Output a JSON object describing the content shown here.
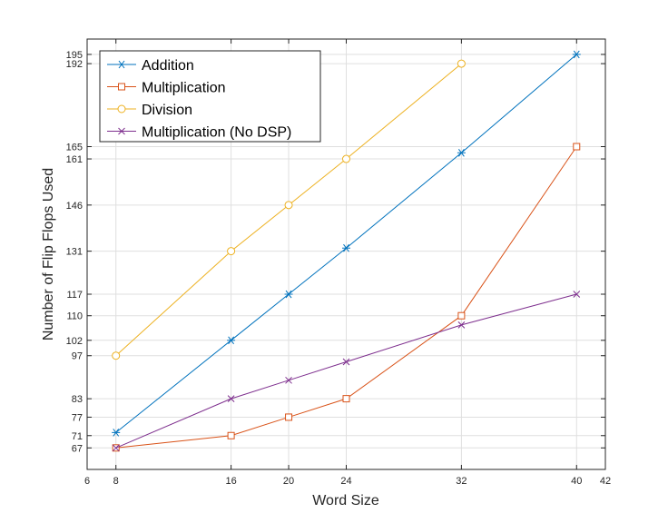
{
  "chart_data": {
    "type": "line",
    "title": "",
    "xlabel": "Word Size",
    "ylabel": "Number of Flip Flops Used",
    "xlim": [
      6,
      42
    ],
    "ylim": [
      60,
      200
    ],
    "xticks": [
      6,
      8,
      16,
      20,
      24,
      32,
      40,
      42
    ],
    "yticks": [
      67,
      71,
      77,
      83,
      97,
      102,
      110,
      117,
      131,
      146,
      161,
      165,
      192,
      195
    ],
    "grid": true,
    "legend_position": "top-left",
    "series": [
      {
        "name": "Addition",
        "color": "#0072BD",
        "marker": "asterisk",
        "x": [
          8,
          16,
          20,
          24,
          32,
          40
        ],
        "y": [
          72,
          102,
          117,
          132,
          163,
          195
        ]
      },
      {
        "name": "Multiplication",
        "color": "#D95319",
        "marker": "square",
        "x": [
          8,
          16,
          20,
          24,
          32,
          40
        ],
        "y": [
          67,
          71,
          77,
          83,
          110,
          165
        ]
      },
      {
        "name": "Division",
        "color": "#EDB120",
        "marker": "circle",
        "x": [
          8,
          16,
          20,
          24,
          32
        ],
        "y": [
          97,
          131,
          146,
          161,
          192
        ]
      },
      {
        "name": "Multiplication (No DSP)",
        "color": "#7E2F8E",
        "marker": "x",
        "x": [
          8,
          16,
          20,
          24,
          32,
          40
        ],
        "y": [
          67,
          83,
          89,
          95,
          107,
          117
        ]
      }
    ]
  }
}
